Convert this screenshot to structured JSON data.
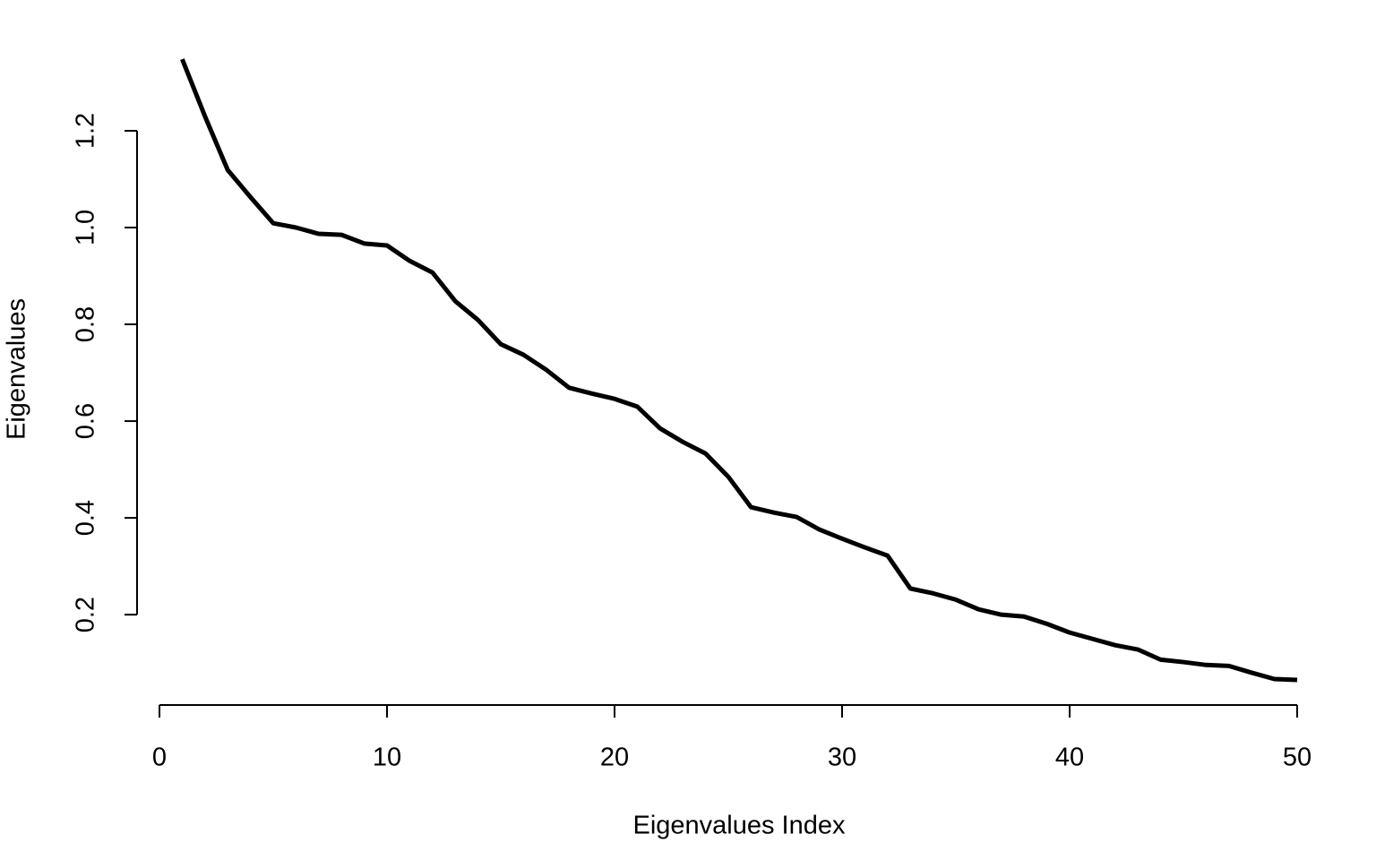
{
  "chart_data": {
    "type": "line",
    "xlabel": "Eigenvalues Index",
    "ylabel": "Eigenvalues",
    "x": [
      1,
      2,
      3,
      4,
      5,
      6,
      7,
      8,
      9,
      10,
      11,
      12,
      13,
      14,
      15,
      16,
      17,
      18,
      19,
      20,
      21,
      22,
      23,
      24,
      25,
      26,
      27,
      28,
      29,
      30,
      31,
      32,
      33,
      34,
      35,
      36,
      37,
      38,
      39,
      40,
      41,
      42,
      43,
      44,
      45,
      46,
      47,
      48,
      49,
      50
    ],
    "series": [
      {
        "color": "#000000",
        "values": [
          1.348,
          1.23,
          1.119,
          1.063,
          1.009,
          1.0,
          0.987,
          0.985,
          0.967,
          0.963,
          0.931,
          0.907,
          0.848,
          0.809,
          0.759,
          0.737,
          0.706,
          0.669,
          0.657,
          0.646,
          0.63,
          0.585,
          0.557,
          0.533,
          0.485,
          0.422,
          0.411,
          0.402,
          0.376,
          0.357,
          0.339,
          0.322,
          0.254,
          0.244,
          0.231,
          0.211,
          0.2,
          0.196,
          0.181,
          0.163,
          0.15,
          0.137,
          0.128,
          0.107,
          0.102,
          0.096,
          0.094,
          0.08,
          0.067,
          0.065
        ]
      }
    ],
    "xlim": [
      -0.96,
      51.96
    ],
    "ylim": [
      0.014,
      1.399
    ],
    "xticks": [
      0,
      10,
      20,
      30,
      40,
      50
    ],
    "yticks": [
      0.2,
      0.4,
      0.6,
      0.8,
      {
        "value": 1.0,
        "label": "1.0"
      },
      1.2
    ],
    "grid": false
  }
}
